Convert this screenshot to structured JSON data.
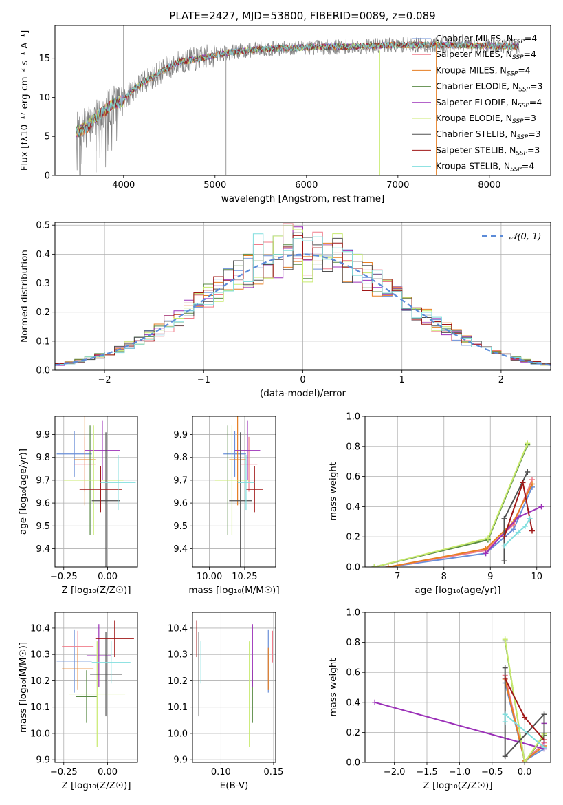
{
  "figure_title": "PLATE=2427, MJD=53800, FIBERID=0089, z=0.089",
  "colors": {
    "chabrier_miles": "#6a8fd8",
    "salpeter_miles": "#f07c8a",
    "kroupa_miles": "#e67e22",
    "chabrier_elodie": "#5a8a45",
    "salpeter_elodie": "#9b30b8",
    "kroupa_elodie": "#c8ea6e",
    "chabrier_stelib": "#505050",
    "salpeter_stelib": "#a01818",
    "kroupa_stelib": "#80dede",
    "data": "#808080",
    "normal_curve": "#5b8bd8"
  },
  "chart_data": [
    {
      "id": "spectrum",
      "type": "line",
      "xlabel": "wavelength [Angstrom, rest frame]",
      "ylabel": "Flux [fλ10⁻¹⁷ erg cm⁻² s⁻¹ A⁻¹]",
      "xlim": [
        3250,
        8670
      ],
      "ylim": [
        0,
        19.2
      ],
      "xticks": [
        4000,
        5000,
        6000,
        7000,
        8000
      ],
      "yticks": [
        0,
        5,
        10,
        15
      ],
      "grid": false,
      "legend_position": "right",
      "profile": {
        "x": [
          3500,
          3600,
          3700,
          3800,
          3900,
          4000,
          4100,
          4200,
          4400,
          4600,
          4800,
          5000,
          5200,
          5500,
          6000,
          6500,
          7000,
          7500,
          8000,
          8300
        ],
        "y": [
          5.6,
          6.2,
          7.5,
          8.4,
          9.2,
          9.6,
          11.0,
          11.8,
          13.2,
          14.5,
          14.9,
          15.4,
          15.8,
          16.2,
          16.4,
          16.5,
          16.7,
          16.7,
          16.6,
          16.5
        ]
      },
      "series": [
        {
          "name": "Chabrier MILES, N_SSP=4",
          "label": "Chabrier MILES, N",
          "sub": "SSP",
          "suffix": "=4",
          "color_key": "chabrier_miles"
        },
        {
          "name": "Salpeter MILES, N_SSP=4",
          "label": "Salpeter MILES, N",
          "sub": "SSP",
          "suffix": "=4",
          "color_key": "salpeter_miles"
        },
        {
          "name": "Kroupa MILES, N_SSP=4",
          "label": "Kroupa MILES, N",
          "sub": "SSP",
          "suffix": "=4",
          "color_key": "kroupa_miles"
        },
        {
          "name": "Chabrier ELODIE, N_SSP=3",
          "label": "Chabrier ELODIE, N",
          "sub": "SSP",
          "suffix": "=3",
          "color_key": "chabrier_elodie"
        },
        {
          "name": "Salpeter ELODIE, N_SSP=4",
          "label": "Salpeter ELODIE, N",
          "sub": "SSP",
          "suffix": "=4",
          "color_key": "salpeter_elodie"
        },
        {
          "name": "Kroupa ELODIE, N_SSP=3",
          "label": "Kroupa ELODIE, N",
          "sub": "SSP",
          "suffix": "=3",
          "color_key": "kroupa_elodie"
        },
        {
          "name": "Chabrier STELIB, N_SSP=3",
          "label": "Chabrier STELIB, N",
          "sub": "SSP",
          "suffix": "=3",
          "color_key": "chabrier_stelib"
        },
        {
          "name": "Salpeter STELIB, N_SSP=3",
          "label": "Salpeter STELIB, N",
          "sub": "SSP",
          "suffix": "=3",
          "color_key": "salpeter_stelib"
        },
        {
          "name": "Kroupa STELIB, N_SSP=4",
          "label": "Kroupa STELIB, N",
          "sub": "SSP",
          "suffix": "=4",
          "color_key": "kroupa_stelib"
        }
      ]
    },
    {
      "id": "residuals",
      "type": "histogram",
      "xlabel": "(data-model)/error",
      "ylabel": "Normed distribution",
      "xlim": [
        -2.5,
        2.5
      ],
      "ylim": [
        0,
        0.51
      ],
      "xticks": [
        -2,
        -1,
        0,
        1,
        2
      ],
      "xtick_labels": [
        "−2",
        "−1",
        "0",
        "1",
        "2"
      ],
      "yticks": [
        0,
        0.1,
        0.2,
        0.3,
        0.4,
        0.5
      ],
      "ytick_labels": [
        "0.0",
        "0.1",
        "0.2",
        "0.3",
        "0.4",
        "0.5"
      ],
      "grid": true,
      "legend_position": "top-right",
      "reference_curve": {
        "label": "𝒩(0, 1)",
        "mean": 0,
        "sigma": 1
      },
      "bin_width": 0.1
    },
    {
      "id": "age_vs_Z",
      "type": "errorbar",
      "xlabel": "Z [log₁₀(Z/Z☉)]",
      "ylabel": "age  [log₁₀(age/yr)]",
      "xlim": [
        -0.3,
        0.17
      ],
      "ylim": [
        9.32,
        9.98
      ],
      "xticks": [
        -0.25,
        0.0
      ],
      "xtick_labels": [
        "−0.25",
        "0.00"
      ],
      "yticks": [
        9.4,
        9.5,
        9.6,
        9.7,
        9.8,
        9.9
      ],
      "grid": true,
      "points": [
        {
          "color_key": "chabrier_miles",
          "x": -0.19,
          "xerr": 0.1,
          "y": 9.815,
          "yerr": 0.1
        },
        {
          "color_key": "salpeter_miles",
          "x": -0.13,
          "xerr": 0.06,
          "y": 9.77,
          "yerr": 0.12
        },
        {
          "color_key": "kroupa_miles",
          "x": -0.13,
          "xerr": 0.06,
          "y": 9.79,
          "yerr": 0.2
        },
        {
          "color_key": "chabrier_elodie",
          "x": -0.1,
          "xerr": 0.04,
          "y": 9.7,
          "yerr": 0.24
        },
        {
          "color_key": "salpeter_elodie",
          "x": -0.03,
          "xerr": 0.1,
          "y": 9.83,
          "yerr": 0.13
        },
        {
          "color_key": "kroupa_elodie",
          "x": -0.08,
          "xerr": 0.17,
          "y": 9.7,
          "yerr": 0.24
        },
        {
          "color_key": "chabrier_stelib",
          "x": -0.01,
          "xerr": 0.08,
          "y": 9.61,
          "yerr": 0.3
        },
        {
          "color_key": "salpeter_stelib",
          "x": -0.04,
          "xerr": 0.12,
          "y": 9.66,
          "yerr": 0.1
        },
        {
          "color_key": "kroupa_stelib",
          "x": 0.06,
          "xerr": 0.1,
          "y": 9.69,
          "yerr": 0.12
        }
      ]
    },
    {
      "id": "age_vs_mass",
      "type": "errorbar",
      "xlabel": "mass [log₁₀(M/M☉)]",
      "ylabel": "",
      "xlim": [
        9.88,
        10.47
      ],
      "ylim": [
        9.32,
        9.98
      ],
      "xticks": [
        10.0,
        10.25
      ],
      "xtick_labels": [
        "10.00",
        "10.25"
      ],
      "yticks": [
        9.4,
        9.5,
        9.6,
        9.7,
        9.8,
        9.9
      ],
      "grid": true,
      "points": [
        {
          "color_key": "chabrier_miles",
          "x": 10.18,
          "xerr": 0.08,
          "y": 9.815,
          "yerr": 0.1
        },
        {
          "color_key": "salpeter_miles",
          "x": 10.28,
          "xerr": 0.06,
          "y": 9.77,
          "yerr": 0.12
        },
        {
          "color_key": "kroupa_miles",
          "x": 10.2,
          "xerr": 0.06,
          "y": 9.79,
          "yerr": 0.2
        },
        {
          "color_key": "chabrier_elodie",
          "x": 10.13,
          "xerr": 0.07,
          "y": 9.7,
          "yerr": 0.24
        },
        {
          "color_key": "salpeter_elodie",
          "x": 10.27,
          "xerr": 0.09,
          "y": 9.83,
          "yerr": 0.13
        },
        {
          "color_key": "kroupa_elodie",
          "x": 10.16,
          "xerr": 0.12,
          "y": 9.7,
          "yerr": 0.24
        },
        {
          "color_key": "chabrier_stelib",
          "x": 10.22,
          "xerr": 0.08,
          "y": 9.61,
          "yerr": 0.3
        },
        {
          "color_key": "salpeter_stelib",
          "x": 10.32,
          "xerr": 0.06,
          "y": 9.66,
          "yerr": 0.1
        },
        {
          "color_key": "kroupa_stelib",
          "x": 10.26,
          "xerr": 0.06,
          "y": 9.69,
          "yerr": 0.12
        }
      ]
    },
    {
      "id": "weight_vs_age",
      "type": "line",
      "xlabel": "age  [log₁₀(age/yr)]",
      "ylabel": "mass weight",
      "xlim": [
        6.3,
        10.3
      ],
      "ylim": [
        0,
        1.0
      ],
      "xticks": [
        7,
        8,
        9,
        10
      ],
      "yticks": [
        0,
        0.2,
        0.4,
        0.6,
        0.8,
        1.0
      ],
      "ytick_labels": [
        "0.0",
        "0.2",
        "0.4",
        "0.6",
        "0.8",
        "1.0"
      ],
      "grid": true,
      "series": [
        {
          "color_key": "chabrier_miles",
          "x": [
            6.8,
            8.9,
            9.5,
            9.9
          ],
          "y": [
            0.0,
            0.09,
            0.25,
            0.53
          ]
        },
        {
          "color_key": "salpeter_miles",
          "x": [
            6.8,
            8.9,
            9.5,
            9.9
          ],
          "y": [
            0.0,
            0.11,
            0.28,
            0.58
          ]
        },
        {
          "color_key": "kroupa_miles",
          "x": [
            6.8,
            8.9,
            9.5,
            9.9
          ],
          "y": [
            0.0,
            0.12,
            0.3,
            0.55
          ]
        },
        {
          "color_key": "chabrier_elodie",
          "x": [
            6.5,
            8.95,
            9.8
          ],
          "y": [
            0.0,
            0.18,
            0.81
          ]
        },
        {
          "color_key": "salpeter_elodie",
          "x": [
            8.9,
            9.6,
            10.1
          ],
          "y": [
            0.09,
            0.33,
            0.4
          ]
        },
        {
          "color_key": "kroupa_elodie",
          "x": [
            6.5,
            8.95,
            9.8
          ],
          "y": [
            0.0,
            0.19,
            0.82
          ]
        },
        {
          "color_key": "chabrier_stelib",
          "x": [
            9.3,
            9.3,
            9.8
          ],
          "y": [
            0.04,
            0.32,
            0.63
          ]
        },
        {
          "color_key": "salpeter_stelib",
          "x": [
            9.3,
            9.7,
            9.9
          ],
          "y": [
            0.2,
            0.56,
            0.24
          ]
        },
        {
          "color_key": "kroupa_stelib",
          "x": [
            9.3,
            9.6,
            9.75,
            9.85
          ],
          "y": [
            0.14,
            0.23,
            0.27,
            0.32
          ]
        }
      ]
    },
    {
      "id": "mass_vs_Z",
      "type": "errorbar",
      "xlabel": "Z [log₁₀(Z/Z☉)]",
      "ylabel": "mass [log₁₀(M/M☉)]",
      "xlim": [
        -0.3,
        0.17
      ],
      "ylim": [
        9.89,
        10.46
      ],
      "xticks": [
        -0.25,
        0.0
      ],
      "xtick_labels": [
        "−0.25",
        "0.00"
      ],
      "yticks": [
        9.9,
        10.0,
        10.1,
        10.2,
        10.3,
        10.4
      ],
      "ytick_labels": [
        "9.9",
        "10.0",
        "10.1",
        "10.2",
        "10.3",
        "10.4"
      ],
      "grid": true,
      "points": [
        {
          "color_key": "chabrier_miles",
          "x": -0.19,
          "xerr": 0.1,
          "y": 10.275,
          "yerr": 0.12
        },
        {
          "color_key": "salpeter_miles",
          "x": -0.17,
          "xerr": 0.09,
          "y": 10.33,
          "yerr": 0.06
        },
        {
          "color_key": "kroupa_miles",
          "x": -0.17,
          "xerr": 0.09,
          "y": 10.245,
          "yerr": 0.08
        },
        {
          "color_key": "chabrier_elodie",
          "x": -0.12,
          "xerr": 0.06,
          "y": 10.14,
          "yerr": 0.1
        },
        {
          "color_key": "salpeter_elodie",
          "x": -0.05,
          "xerr": 0.07,
          "y": 10.295,
          "yerr": 0.12
        },
        {
          "color_key": "kroupa_elodie",
          "x": -0.06,
          "xerr": 0.16,
          "y": 10.15,
          "yerr": 0.2
        },
        {
          "color_key": "chabrier_stelib",
          "x": -0.01,
          "xerr": 0.09,
          "y": 10.225,
          "yerr": 0.16
        },
        {
          "color_key": "salpeter_stelib",
          "x": 0.04,
          "xerr": 0.11,
          "y": 10.36,
          "yerr": 0.07
        },
        {
          "color_key": "kroupa_stelib",
          "x": 0.02,
          "xerr": 0.11,
          "y": 10.27,
          "yerr": 0.08
        }
      ]
    },
    {
      "id": "mass_vs_ebv",
      "type": "errorbar",
      "xlabel": "E(B-V)",
      "ylabel": "",
      "xlim": [
        0.073,
        0.152
      ],
      "ylim": [
        9.89,
        10.46
      ],
      "xticks": [
        0.1,
        0.15
      ],
      "xtick_labels": [
        "0.10",
        "0.15"
      ],
      "yticks": [
        9.9,
        10.0,
        10.1,
        10.2,
        10.3,
        10.4
      ],
      "ytick_labels": [
        "9.9",
        "10.0",
        "10.1",
        "10.2",
        "10.3",
        "10.4"
      ],
      "grid": true,
      "points": [
        {
          "color_key": "chabrier_miles",
          "x": 0.145,
          "y": 10.275,
          "yerr": 0.12
        },
        {
          "color_key": "salpeter_miles",
          "x": 0.149,
          "y": 10.33,
          "yerr": 0.06
        },
        {
          "color_key": "kroupa_miles",
          "x": 0.145,
          "y": 10.245,
          "yerr": 0.08
        },
        {
          "color_key": "chabrier_elodie",
          "x": 0.13,
          "y": 10.14,
          "yerr": 0.1
        },
        {
          "color_key": "salpeter_elodie",
          "x": 0.13,
          "y": 10.295,
          "yerr": 0.12
        },
        {
          "color_key": "kroupa_elodie",
          "x": 0.127,
          "y": 10.15,
          "yerr": 0.2
        },
        {
          "color_key": "chabrier_stelib",
          "x": 0.079,
          "y": 10.225,
          "yerr": 0.16
        },
        {
          "color_key": "salpeter_stelib",
          "x": 0.077,
          "y": 10.36,
          "yerr": 0.07
        },
        {
          "color_key": "kroupa_stelib",
          "x": 0.081,
          "y": 10.27,
          "yerr": 0.08
        }
      ]
    },
    {
      "id": "weight_vs_Z",
      "type": "line",
      "xlabel": "Z [log₁₀(Z/Z☉)]",
      "ylabel": "mass weight",
      "xlim": [
        -2.45,
        0.4
      ],
      "ylim": [
        0,
        1.0
      ],
      "xticks": [
        -2.0,
        -1.5,
        -1.0,
        -0.5,
        0.0
      ],
      "xtick_labels": [
        "−2.0",
        "−1.5",
        "−1.0",
        "−0.5",
        "0.0"
      ],
      "yticks": [
        0,
        0.2,
        0.4,
        0.6,
        0.8,
        1.0
      ],
      "ytick_labels": [
        "0.0",
        "0.2",
        "0.4",
        "0.6",
        "0.8",
        "1.0"
      ],
      "grid": true,
      "series": [
        {
          "color_key": "chabrier_miles",
          "x": [
            -0.3,
            0.0,
            0.3
          ],
          "y": [
            0.53,
            0.01,
            0.09
          ]
        },
        {
          "color_key": "salpeter_miles",
          "x": [
            -0.3,
            0.0,
            0.3
          ],
          "y": [
            0.58,
            0.01,
            0.13
          ]
        },
        {
          "color_key": "kroupa_miles",
          "x": [
            -0.3,
            0.0,
            0.3
          ],
          "y": [
            0.55,
            0.01,
            0.11
          ]
        },
        {
          "color_key": "chabrier_elodie",
          "x": [
            -0.3,
            0.0,
            0.3
          ],
          "y": [
            0.81,
            0.0,
            0.18
          ]
        },
        {
          "color_key": "salpeter_elodie",
          "x": [
            -2.3,
            0.3,
            0.3
          ],
          "y": [
            0.4,
            0.09,
            0.26
          ]
        },
        {
          "color_key": "kroupa_elodie",
          "x": [
            -0.3,
            0.0,
            0.3
          ],
          "y": [
            0.82,
            0.0,
            0.19
          ]
        },
        {
          "color_key": "chabrier_stelib",
          "x": [
            -0.3,
            -0.3,
            0.3,
            0.3
          ],
          "y": [
            0.63,
            0.04,
            0.32,
            0.15
          ]
        },
        {
          "color_key": "salpeter_stelib",
          "x": [
            -0.3,
            0.0,
            0.3
          ],
          "y": [
            0.56,
            0.3,
            0.15
          ]
        },
        {
          "color_key": "kroupa_stelib",
          "x": [
            -0.3,
            -0.3,
            0.3
          ],
          "y": [
            0.27,
            0.32,
            0.1
          ]
        }
      ]
    }
  ]
}
